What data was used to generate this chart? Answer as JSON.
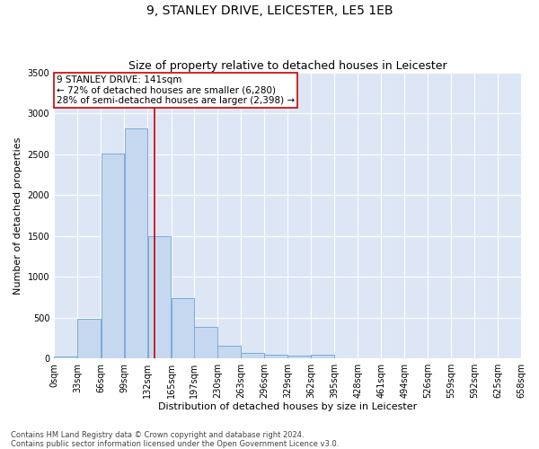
{
  "title": "9, STANLEY DRIVE, LEICESTER, LE5 1EB",
  "subtitle": "Size of property relative to detached houses in Leicester",
  "xlabel": "Distribution of detached houses by size in Leicester",
  "ylabel": "Number of detached properties",
  "footer_line1": "Contains HM Land Registry data © Crown copyright and database right 2024.",
  "footer_line2": "Contains public sector information licensed under the Open Government Licence v3.0.",
  "annotation_line1": "9 STANLEY DRIVE: 141sqm",
  "annotation_line2": "← 72% of detached houses are smaller (6,280)",
  "annotation_line3": "28% of semi-detached houses are larger (2,398) →",
  "bar_edges": [
    0,
    33,
    66,
    99,
    132,
    165,
    197,
    230,
    263,
    296,
    329,
    362,
    395,
    428,
    461,
    494,
    526,
    559,
    592,
    625,
    658
  ],
  "bar_heights": [
    20,
    490,
    2510,
    2820,
    1500,
    740,
    390,
    155,
    70,
    45,
    35,
    50,
    0,
    0,
    0,
    0,
    0,
    0,
    0,
    0
  ],
  "bar_color": "#c5d8f0",
  "bar_edge_color": "#7aadd4",
  "vline_x": 141,
  "vline_color": "#cc0000",
  "background_color": "#dce6f5",
  "plot_bg_color": "#dce6f5",
  "ylim": [
    0,
    3500
  ],
  "yticks": [
    0,
    500,
    1000,
    1500,
    2000,
    2500,
    3000,
    3500
  ],
  "title_fontsize": 10,
  "subtitle_fontsize": 9,
  "axis_label_fontsize": 8,
  "tick_fontsize": 7,
  "annotation_fontsize": 7.5,
  "footer_fontsize": 6
}
